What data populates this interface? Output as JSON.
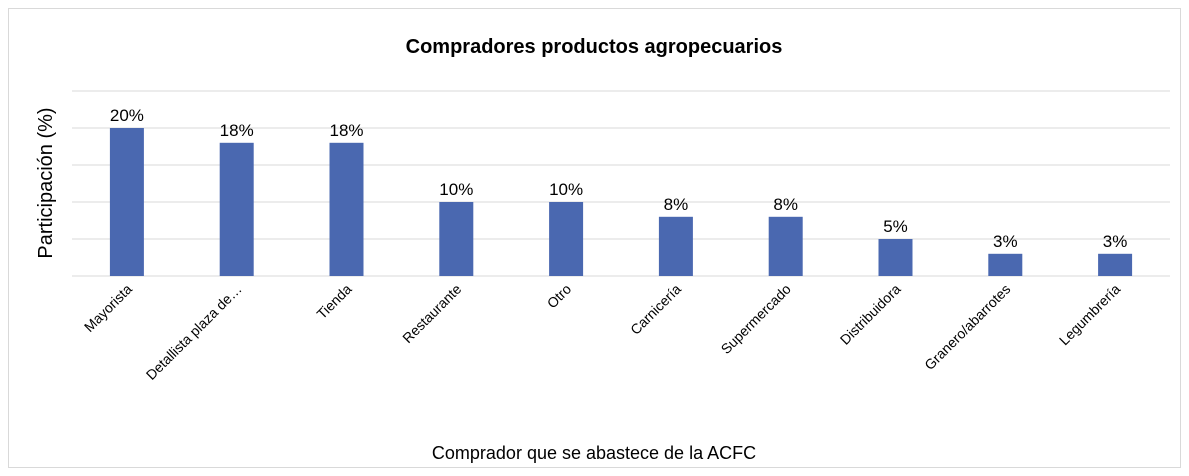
{
  "chart_data": {
    "type": "bar",
    "title": "Compradores productos agropecuarios",
    "x_label": "Comprador que se abastece de la ACFC",
    "y_label": "Participación (%)",
    "categories": [
      "Mayorista",
      "Detallista plaza de…",
      "Tienda",
      "Restaurante",
      "Otro",
      "Carnicería",
      "Supermercado",
      "Distribuidora",
      "Granero/abarrotes",
      "Legumbrería"
    ],
    "values": [
      20,
      18,
      18,
      10,
      10,
      8,
      8,
      5,
      3,
      3
    ],
    "value_labels": [
      "20%",
      "18%",
      "18%",
      "10%",
      "10%",
      "8%",
      "8%",
      "5%",
      "3%",
      "3%"
    ],
    "color": "#4a68b0",
    "ylim": [
      0,
      25
    ],
    "yticks": [
      0,
      5,
      10,
      15,
      20,
      25
    ],
    "grid": true
  }
}
